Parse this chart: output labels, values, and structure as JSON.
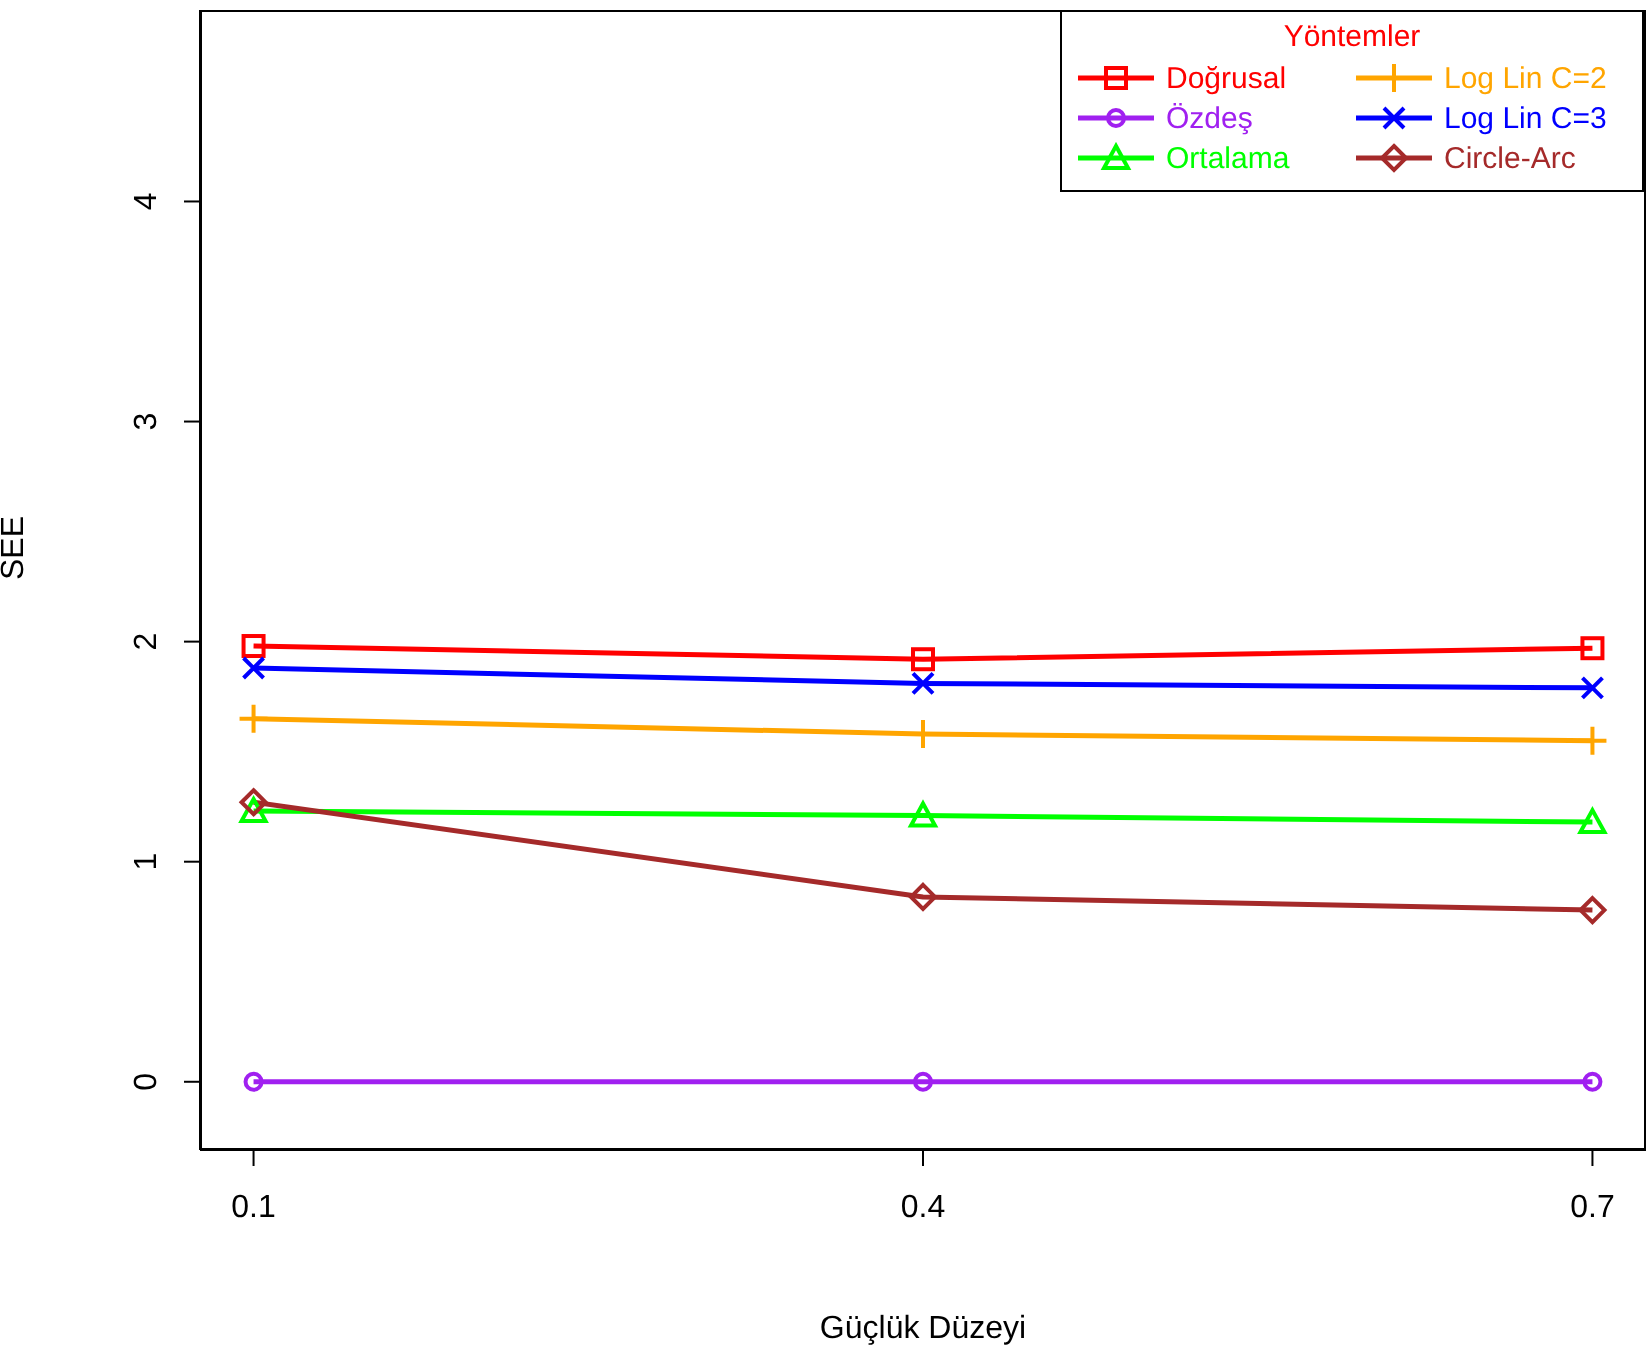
{
  "chart_data": {
    "type": "line",
    "xlabel": "Güçlük Düzeyi",
    "ylabel": "SEE",
    "legend_title": "Yöntemler",
    "legend": "top right",
    "x": [
      0.1,
      0.4,
      0.7
    ],
    "xlim": [
      0.076,
      0.724
    ],
    "xticks": [
      0.1,
      0.4,
      0.7
    ],
    "ylim": [
      -0.31,
      4.87
    ],
    "yticks": [
      0,
      1,
      2,
      3,
      4
    ],
    "series": [
      {
        "name": "Doğrusal",
        "color": "#ff0000",
        "marker": "square",
        "values": [
          1.98,
          1.92,
          1.97
        ]
      },
      {
        "name": "Özdeş",
        "color": "#a020f0",
        "marker": "circle",
        "values": [
          0,
          0,
          0
        ]
      },
      {
        "name": "Ortalama",
        "color": "#00ff00",
        "marker": "triangle",
        "values": [
          1.23,
          1.21,
          1.18
        ]
      },
      {
        "name": "Log Lin C=2",
        "color": "#ffa500",
        "marker": "plus",
        "values": [
          1.65,
          1.58,
          1.55
        ]
      },
      {
        "name": "Log Lin C=3",
        "color": "#0000ff",
        "marker": "cross",
        "values": [
          1.88,
          1.81,
          1.79
        ]
      },
      {
        "name": "Circle-Arc",
        "color": "#a52a2a",
        "marker": "diamond",
        "values": [
          1.27,
          0.84,
          0.78
        ]
      }
    ]
  }
}
